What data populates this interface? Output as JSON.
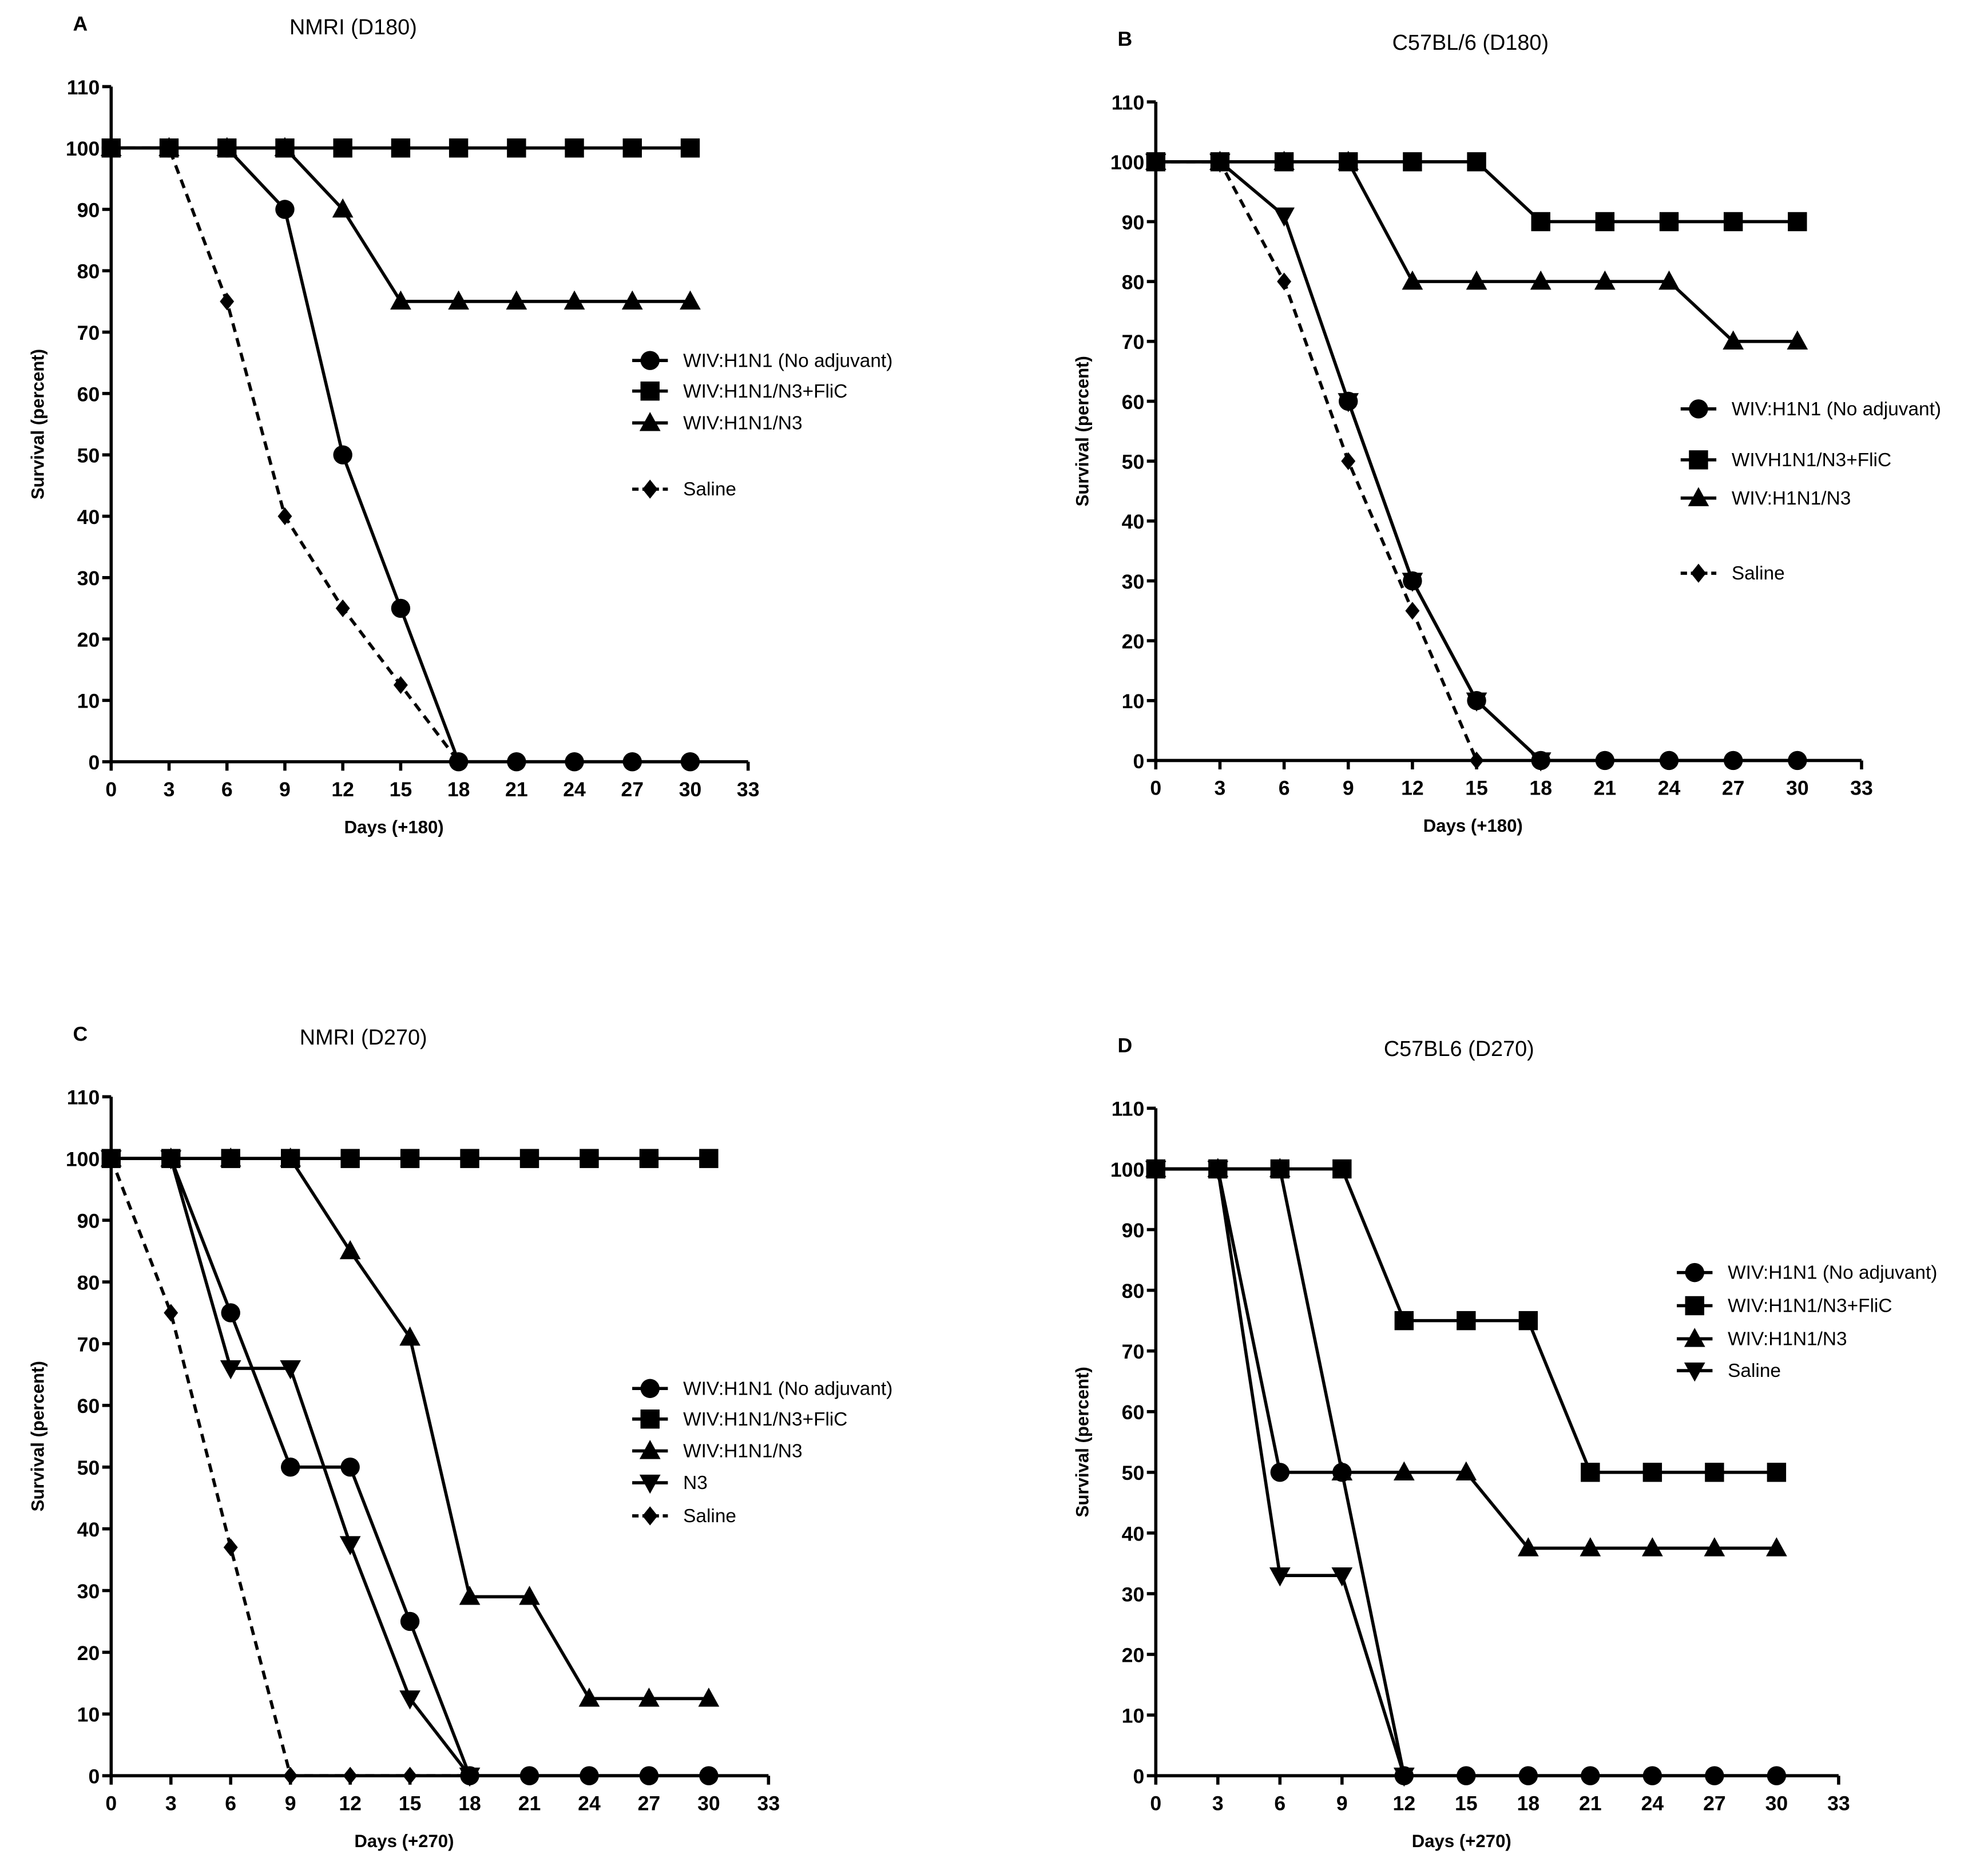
{
  "chart_data": [
    {
      "type": "line",
      "panel_label": "A",
      "title": "NMRI (D180)",
      "xlabel": "Days (+180)",
      "ylabel": "Survival (percent)",
      "xlim": [
        0,
        33
      ],
      "xticks": [
        0,
        3,
        6,
        9,
        12,
        15,
        18,
        21,
        24,
        27,
        30,
        33
      ],
      "ylim": [
        0,
        110
      ],
      "yticks": [
        0,
        10,
        20,
        30,
        40,
        50,
        60,
        70,
        80,
        90,
        100,
        110
      ],
      "series": [
        {
          "name": "WIV:H1N1 (No adjuvant)",
          "marker": "circle",
          "dashed": false,
          "color": "#000000",
          "x": [
            0,
            3,
            6,
            9,
            12,
            15,
            18,
            21,
            24,
            27,
            30
          ],
          "values": [
            100,
            100,
            100,
            90,
            50,
            25,
            0,
            0,
            0,
            0,
            0
          ]
        },
        {
          "name": "WIV:H1N1/N3+FliC",
          "marker": "square",
          "dashed": false,
          "color": "#000000",
          "x": [
            0,
            3,
            6,
            9,
            12,
            15,
            18,
            21,
            24,
            27,
            30
          ],
          "values": [
            100,
            100,
            100,
            100,
            100,
            100,
            100,
            100,
            100,
            100,
            100
          ]
        },
        {
          "name": "WIV:H1N1/N3",
          "marker": "triangle",
          "dashed": false,
          "color": "#000000",
          "x": [
            0,
            3,
            6,
            9,
            12,
            15,
            18,
            21,
            24,
            27,
            30
          ],
          "values": [
            100,
            100,
            100,
            100,
            90,
            75,
            75,
            75,
            75,
            75,
            75
          ]
        },
        {
          "name": "Saline",
          "marker": "diamond",
          "dashed": true,
          "color": "#000000",
          "x": [
            0,
            3,
            6,
            9,
            12,
            15,
            18
          ],
          "values": [
            100,
            100,
            75,
            40,
            25,
            12.5,
            0
          ]
        }
      ]
    },
    {
      "type": "line",
      "panel_label": "B",
      "title": "C57BL/6 (D180)",
      "xlabel": "Days (+180)",
      "ylabel": "Survival (percent)",
      "xlim": [
        0,
        33
      ],
      "xticks": [
        0,
        3,
        6,
        9,
        12,
        15,
        18,
        21,
        24,
        27,
        30,
        33
      ],
      "ylim": [
        0,
        110
      ],
      "yticks": [
        0,
        10,
        20,
        30,
        40,
        50,
        60,
        70,
        80,
        90,
        100,
        110
      ],
      "series": [
        {
          "name": "WIV:H1N1 (No adjuvant)",
          "marker": "circle",
          "dashed": false,
          "color": "#000000",
          "x": [
            9,
            12,
            15,
            18,
            21,
            24,
            27,
            30
          ],
          "values": [
            60,
            30,
            10,
            0,
            0,
            0,
            0,
            0
          ]
        },
        {
          "name": "WIVH1N1/N3+FliC",
          "marker": "square",
          "dashed": false,
          "color": "#000000",
          "x": [
            0,
            3,
            6,
            9,
            12,
            15,
            18,
            21,
            24,
            27,
            30
          ],
          "values": [
            100,
            100,
            100,
            100,
            100,
            100,
            90,
            90,
            90,
            90,
            90
          ]
        },
        {
          "name": "WIV:H1N1/N3",
          "marker": "triangle",
          "dashed": false,
          "color": "#000000",
          "x": [
            0,
            3,
            6,
            9,
            12,
            15,
            18,
            21,
            24,
            27,
            30
          ],
          "values": [
            100,
            100,
            100,
            100,
            80,
            80,
            80,
            80,
            80,
            70,
            70
          ]
        },
        {
          "name": "Saline",
          "marker": "diamond",
          "dashed": true,
          "color": "#000000",
          "x": [
            0,
            3,
            6,
            9,
            12,
            15
          ],
          "values": [
            100,
            100,
            80,
            50,
            25,
            0
          ]
        },
        {
          "marker": "triangle-down",
          "dashed": false,
          "color": "#000000",
          "x": [
            0,
            3,
            6,
            9,
            12,
            15,
            18
          ],
          "values": [
            100,
            100,
            91,
            60,
            30,
            10,
            0
          ]
        }
      ]
    },
    {
      "type": "line",
      "panel_label": "C",
      "title": "NMRI (D270)",
      "xlabel": "Days (+270)",
      "ylabel": "Survival (percent)",
      "xlim": [
        0,
        33
      ],
      "xticks": [
        0,
        3,
        6,
        9,
        12,
        15,
        18,
        21,
        24,
        27,
        30,
        33
      ],
      "ylim": [
        0,
        110
      ],
      "yticks": [
        0,
        10,
        20,
        30,
        40,
        50,
        60,
        70,
        80,
        90,
        100,
        110
      ],
      "series": [
        {
          "name": "WIV:H1N1 (No adjuvant)",
          "marker": "circle",
          "dashed": false,
          "color": "#000000",
          "x": [
            0,
            3,
            6,
            9,
            12,
            15,
            18,
            21,
            24,
            27,
            30
          ],
          "values": [
            100,
            100,
            75,
            50,
            50,
            25,
            0,
            0,
            0,
            0,
            0
          ]
        },
        {
          "name": "WIV:H1N1/N3+FliC",
          "marker": "square",
          "dashed": false,
          "color": "#000000",
          "x": [
            0,
            3,
            6,
            9,
            12,
            15,
            18,
            21,
            24,
            27,
            30
          ],
          "values": [
            100,
            100,
            100,
            100,
            100,
            100,
            100,
            100,
            100,
            100,
            100
          ]
        },
        {
          "name": "WIV:H1N1/N3",
          "marker": "triangle",
          "dashed": false,
          "color": "#000000",
          "x": [
            0,
            3,
            6,
            9,
            12,
            15,
            18,
            21,
            24,
            27,
            30
          ],
          "values": [
            100,
            100,
            100,
            100,
            85,
            71,
            29,
            29,
            12.5,
            12.5,
            12.5
          ]
        },
        {
          "name": "N3",
          "marker": "triangle-down",
          "dashed": false,
          "color": "#000000",
          "x": [
            0,
            3,
            6,
            9,
            12,
            15,
            18
          ],
          "values": [
            100,
            100,
            66,
            66,
            37.5,
            12.5,
            0
          ]
        },
        {
          "name": "Saline",
          "marker": "diamond",
          "dashed": true,
          "color": "#000000",
          "x": [
            0,
            3,
            6,
            9,
            12,
            15,
            18
          ],
          "values": [
            100,
            75,
            37,
            0,
            0,
            0,
            0
          ]
        }
      ]
    },
    {
      "type": "line",
      "panel_label": "D",
      "title": "C57BL6 (D270)",
      "xlabel": "Days (+270)",
      "ylabel": "Survival (percent)",
      "xlim": [
        0,
        33
      ],
      "xticks": [
        0,
        3,
        6,
        9,
        12,
        15,
        18,
        21,
        24,
        27,
        30,
        33
      ],
      "ylim": [
        0,
        110
      ],
      "yticks": [
        0,
        10,
        20,
        30,
        40,
        50,
        60,
        70,
        80,
        90,
        100,
        110
      ],
      "series": [
        {
          "name": "WIV:H1N1 (No adjuvant)",
          "marker": "circle",
          "dashed": false,
          "color": "#000000",
          "x": [
            0,
            3,
            6,
            9,
            12,
            15,
            18,
            21,
            24,
            27,
            30
          ],
          "values": [
            100,
            100,
            50,
            50,
            0,
            0,
            0,
            0,
            0,
            0,
            0
          ]
        },
        {
          "name": "WIV:H1N1/N3+FliC",
          "marker": "square",
          "dashed": false,
          "color": "#000000",
          "x": [
            0,
            3,
            6,
            9,
            12,
            15,
            18,
            21,
            24,
            27,
            30
          ],
          "values": [
            100,
            100,
            100,
            100,
            75,
            75,
            75,
            50,
            50,
            50,
            50
          ]
        },
        {
          "name": "WIV:H1N1/N3",
          "marker": "triangle",
          "dashed": false,
          "color": "#000000",
          "x": [
            0,
            3,
            6,
            9,
            12,
            15,
            18,
            21,
            24,
            27,
            30
          ],
          "values": [
            100,
            100,
            100,
            50,
            50,
            50,
            37.5,
            37.5,
            37.5,
            37.5,
            37.5
          ]
        },
        {
          "name": "Saline",
          "marker": "triangle-down",
          "dashed": false,
          "color": "#000000",
          "x": [
            0,
            3,
            6,
            9,
            12
          ],
          "values": [
            100,
            100,
            33,
            33,
            0
          ]
        }
      ]
    }
  ]
}
